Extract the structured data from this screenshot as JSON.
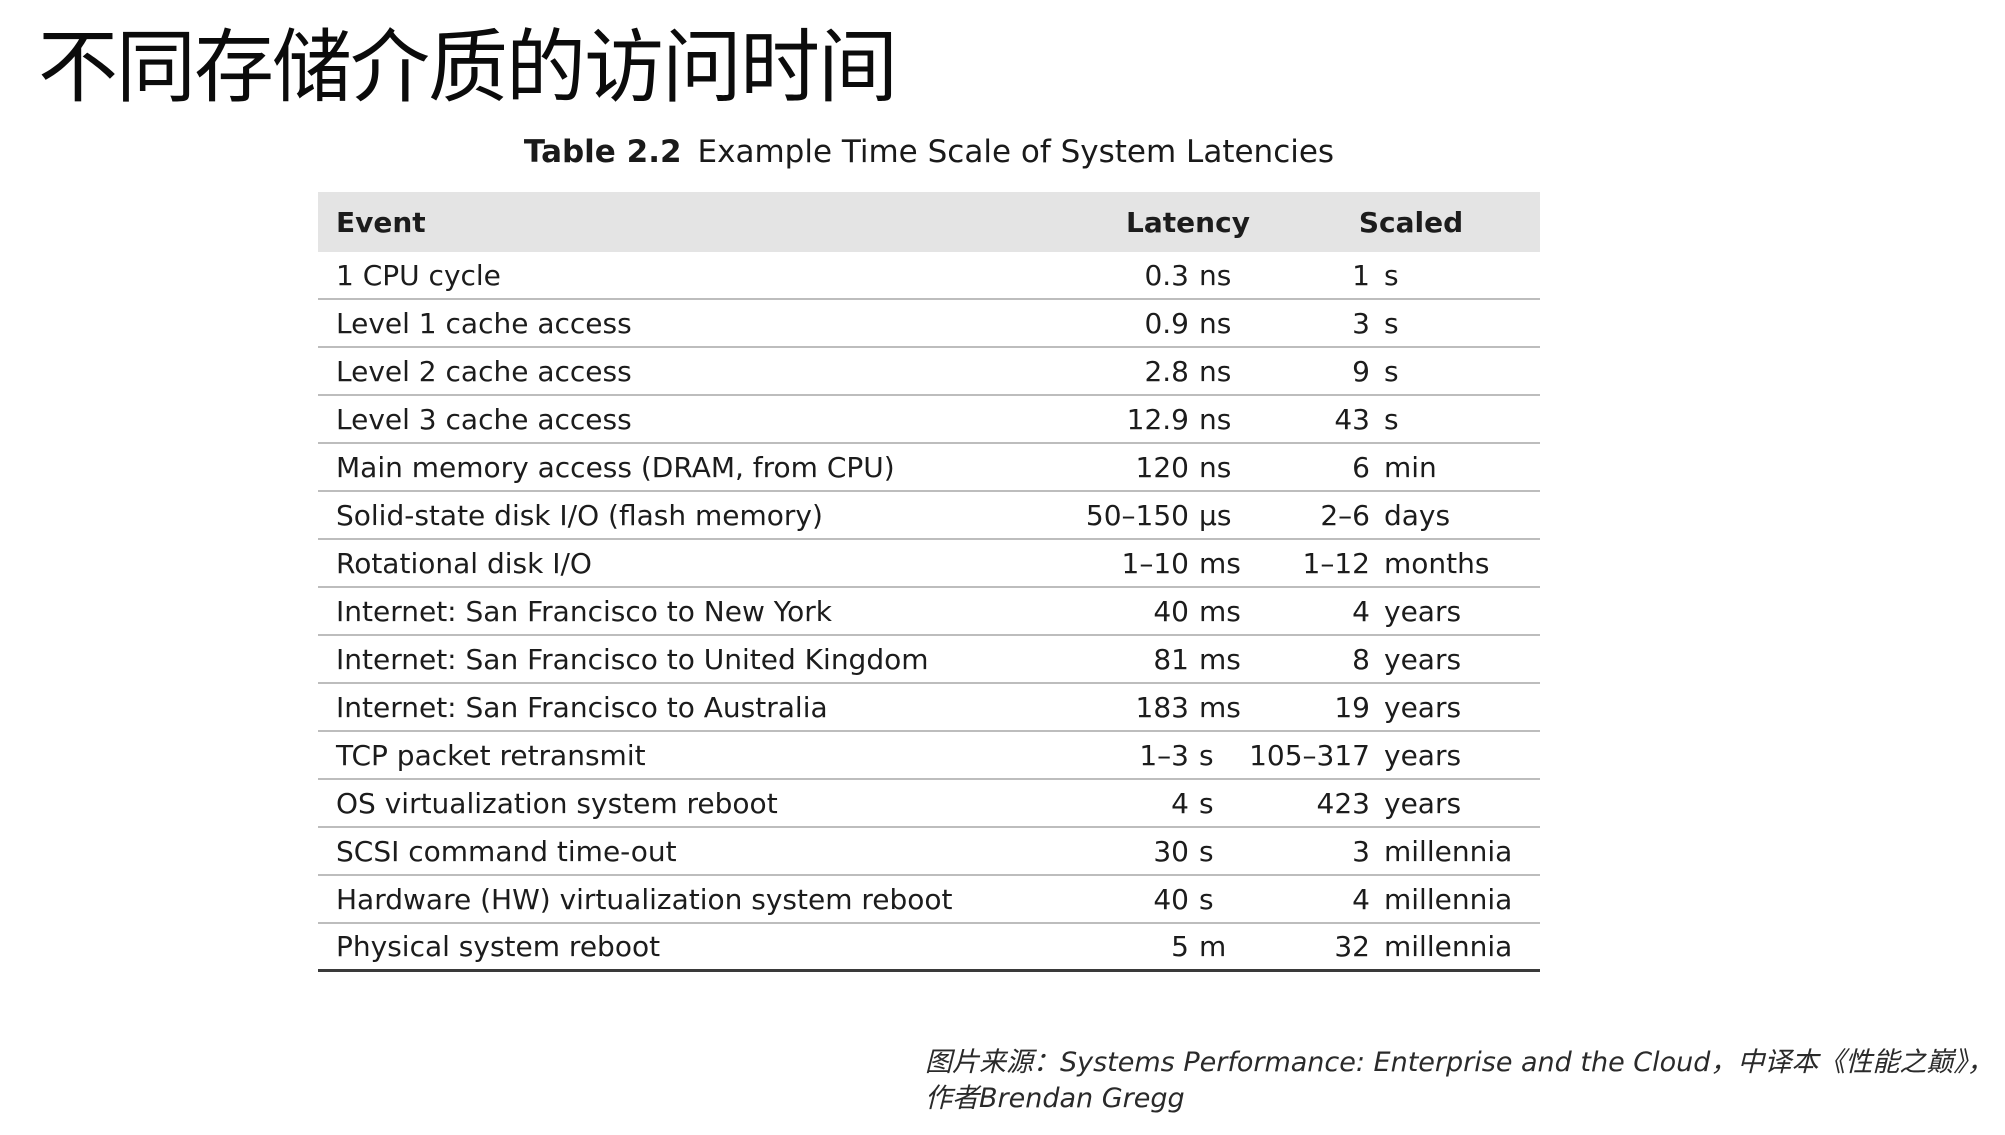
{
  "slide": {
    "title": "不同存储介质的访问时间"
  },
  "table": {
    "caption_number": "Table 2.2",
    "caption_text": "Example Time Scale of System Latencies",
    "headers": {
      "event": "Event",
      "latency": "Latency",
      "scaled": "Scaled"
    },
    "rows": [
      {
        "event": "1 CPU cycle",
        "lat_num": "0.3",
        "lat_unit": "ns",
        "sc_num": "1",
        "sc_unit": "s"
      },
      {
        "event": "Level 1 cache access",
        "lat_num": "0.9",
        "lat_unit": "ns",
        "sc_num": "3",
        "sc_unit": "s"
      },
      {
        "event": "Level 2 cache access",
        "lat_num": "2.8",
        "lat_unit": "ns",
        "sc_num": "9",
        "sc_unit": "s"
      },
      {
        "event": "Level 3 cache access",
        "lat_num": "12.9",
        "lat_unit": "ns",
        "sc_num": "43",
        "sc_unit": "s"
      },
      {
        "event": "Main memory access (DRAM, from CPU)",
        "lat_num": "120",
        "lat_unit": "ns",
        "sc_num": "6",
        "sc_unit": "min"
      },
      {
        "event": "Solid-state disk I/O (flash memory)",
        "lat_num": "50–150",
        "lat_unit": "μs",
        "sc_num": "2–6",
        "sc_unit": "days"
      },
      {
        "event": "Rotational disk I/O",
        "lat_num": "1–10",
        "lat_unit": "ms",
        "sc_num": "1–12",
        "sc_unit": "months"
      },
      {
        "event": "Internet: San Francisco to New York",
        "lat_num": "40",
        "lat_unit": "ms",
        "sc_num": "4",
        "sc_unit": "years"
      },
      {
        "event": "Internet: San Francisco to United Kingdom",
        "lat_num": "81",
        "lat_unit": "ms",
        "sc_num": "8",
        "sc_unit": "years"
      },
      {
        "event": "Internet: San Francisco to Australia",
        "lat_num": "183",
        "lat_unit": "ms",
        "sc_num": "19",
        "sc_unit": "years"
      },
      {
        "event": "TCP packet retransmit",
        "lat_num": "1–3",
        "lat_unit": "s",
        "sc_num": "105–317",
        "sc_unit": "years"
      },
      {
        "event": "OS virtualization system reboot",
        "lat_num": "4",
        "lat_unit": "s",
        "sc_num": "423",
        "sc_unit": "years"
      },
      {
        "event": "SCSI command time-out",
        "lat_num": "30",
        "lat_unit": "s",
        "sc_num": "3",
        "sc_unit": "millennia"
      },
      {
        "event": "Hardware (HW) virtualization system reboot",
        "lat_num": "40",
        "lat_unit": "s",
        "sc_num": "4",
        "sc_unit": "millennia"
      },
      {
        "event": "Physical system reboot",
        "lat_num": "5",
        "lat_unit": "m",
        "sc_num": "32",
        "sc_unit": "millennia"
      }
    ]
  },
  "source": {
    "line1": "图片来源：Systems Performance: Enterprise and the Cloud，中译本《性能之巅》，",
    "line2": "作者Brendan Gregg"
  }
}
